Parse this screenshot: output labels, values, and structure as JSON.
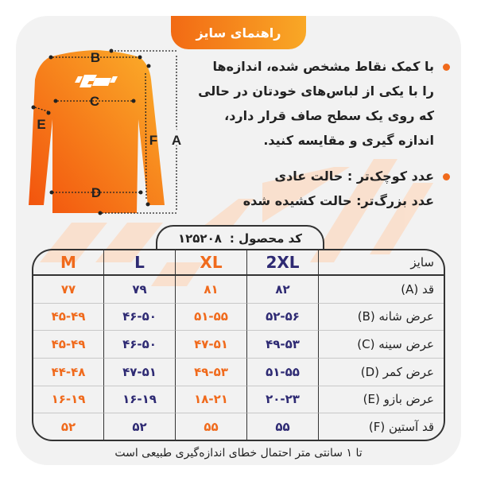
{
  "title": "راهنمای سایز",
  "colors": {
    "accent": "#f06a1c",
    "navy": "#2e2a73",
    "background": "#f2f2f2"
  },
  "diagram": {
    "labels": [
      "A",
      "B",
      "C",
      "D",
      "E",
      "F"
    ],
    "logo": "G"
  },
  "instructions": [
    {
      "lines": [
        "با کمک نقاط مشخص شده، اندازه‌ها",
        "را با یکی از لباس‌های خودتان در حالی",
        "که روی یک سطح صاف قرار دارد،",
        "اندازه گیری و مقایسه کنید."
      ]
    },
    {
      "lines": [
        "عدد کوچک‌تر : حالت عادی",
        "عدد بزرگ‌تر: حالت کشیده شده"
      ]
    }
  ],
  "product_code": {
    "label": "کد محصول :",
    "value": "۱۲۵۲۰۸"
  },
  "table": {
    "header_label": "سایز",
    "sizes": [
      "2XL",
      "XL",
      "L",
      "M"
    ],
    "rows": [
      {
        "label": "قد (A)",
        "values": [
          "۸۲",
          "۸۱",
          "۷۹",
          "۷۷"
        ]
      },
      {
        "label": "عرض شانه (B)",
        "values": [
          "۵۲-۵۶",
          "۵۱-۵۵",
          "۴۶-۵۰",
          "۴۵-۴۹"
        ]
      },
      {
        "label": "عرض سینه (C)",
        "values": [
          "۴۹-۵۳",
          "۴۷-۵۱",
          "۴۶-۵۰",
          "۴۵-۴۹"
        ]
      },
      {
        "label": "عرض کمر (D)",
        "values": [
          "۵۱-۵۵",
          "۴۹-۵۳",
          "۴۷-۵۱",
          "۴۴-۴۸"
        ]
      },
      {
        "label": "عرض بازو (E)",
        "values": [
          "۲۰-۲۳",
          "۱۸-۲۱",
          "۱۶-۱۹",
          "۱۶-۱۹"
        ]
      },
      {
        "label": "قد آستین (F)",
        "values": [
          "۵۵",
          "۵۵",
          "۵۲",
          "۵۲"
        ]
      }
    ]
  },
  "footer": "تا ۱ سانتی متر احتمال خطای اندازه‌گیری طبیعی است"
}
